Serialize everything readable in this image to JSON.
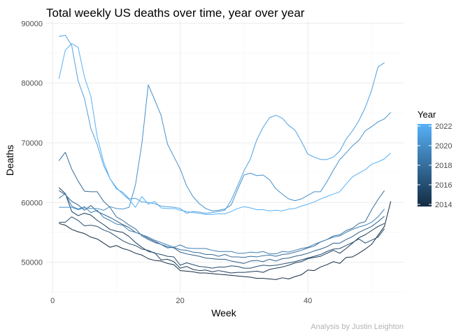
{
  "chart_data": {
    "type": "line",
    "title": "Total weekly US deaths over time, year over year",
    "xlabel": "Week",
    "ylabel": "Deaths",
    "xlim": [
      -1,
      55
    ],
    "ylim": [
      44800,
      90500
    ],
    "x_ticks": [
      0,
      20,
      40
    ],
    "x_tick_labels": [
      "0",
      "20",
      "40"
    ],
    "y_ticks": [
      50000,
      60000,
      70000,
      80000,
      90000
    ],
    "y_tick_labels": [
      "50000",
      "60000",
      "70000",
      "80000",
      "90000"
    ],
    "grid": true,
    "legend": {
      "title": "Year",
      "position": "right",
      "type": "colorbar",
      "range": [
        2014,
        2022
      ],
      "labels": [
        "2022",
        "2020",
        "2018",
        "2016",
        "2014"
      ],
      "low_color": "#132b43",
      "high_color": "#56b1f7"
    },
    "caption": "Analysis by Justin Leighton",
    "series": [
      {
        "year": 2014,
        "x": [
          1,
          2,
          3,
          4,
          5,
          6,
          7,
          8,
          9,
          10,
          11,
          12,
          13,
          14,
          15,
          16,
          17,
          18,
          19,
          20,
          21,
          22,
          23,
          24,
          25,
          26,
          27,
          28,
          29,
          30,
          31,
          32,
          33,
          34,
          35,
          36,
          37,
          38,
          39,
          40,
          41,
          42,
          43,
          44,
          45,
          46,
          47,
          48,
          49,
          50,
          51,
          52,
          53
        ],
        "values": [
          56500,
          56200,
          55500,
          55100,
          54800,
          54200,
          53900,
          53200,
          52500,
          52800,
          52300,
          52000,
          51500,
          51200,
          50600,
          50300,
          50200,
          49800,
          49600,
          48600,
          48500,
          48400,
          48200,
          48200,
          48100,
          48000,
          47900,
          47800,
          47700,
          47600,
          47500,
          47300,
          47300,
          47200,
          47100,
          47400,
          47200,
          47600,
          47900,
          48700,
          48600,
          49200,
          49600,
          50100,
          49800,
          50800,
          50900,
          51500,
          52200,
          53000,
          54500,
          56000,
          60200
        ]
      },
      {
        "year": 2015,
        "x": [
          1,
          2,
          3,
          4,
          5,
          6,
          7,
          8,
          9,
          10,
          11,
          12,
          13,
          14,
          15,
          16,
          17,
          18,
          19,
          20,
          21,
          22,
          23,
          24,
          25,
          26,
          27,
          28,
          29,
          30,
          31,
          32,
          33,
          34,
          35,
          36,
          37,
          38,
          39,
          40,
          41,
          42,
          43,
          44,
          45,
          46,
          47,
          48,
          49,
          50,
          51,
          52
        ],
        "values": [
          62500,
          61500,
          58500,
          57800,
          58200,
          57900,
          57000,
          56300,
          55500,
          55200,
          55000,
          54300,
          53300,
          52500,
          51800,
          51600,
          50400,
          50500,
          50100,
          49000,
          49300,
          48800,
          48600,
          48700,
          48400,
          48600,
          48400,
          48200,
          48300,
          48300,
          48400,
          48500,
          48300,
          48800,
          49000,
          49200,
          49500,
          49900,
          50100,
          50600,
          50800,
          51000,
          51500,
          52000,
          51500,
          52300,
          53200,
          54100,
          54600,
          55300,
          56000,
          56500
        ]
      },
      {
        "year": 2016,
        "x": [
          1,
          2,
          3,
          4,
          5,
          6,
          7,
          8,
          9,
          10,
          11,
          12,
          13,
          14,
          15,
          16,
          17,
          18,
          19,
          20,
          21,
          22,
          23,
          24,
          25,
          26,
          27,
          28,
          29,
          30,
          31,
          32,
          33,
          34,
          35,
          36,
          37,
          38,
          39,
          40,
          41,
          42,
          43,
          44,
          45,
          46,
          47,
          48,
          49,
          50,
          51,
          52
        ],
        "values": [
          56700,
          56700,
          57600,
          57000,
          56100,
          56200,
          56000,
          55400,
          55000,
          54300,
          53600,
          53100,
          52800,
          52200,
          52000,
          51500,
          51300,
          51000,
          50900,
          49500,
          49900,
          49600,
          49300,
          49200,
          49000,
          49200,
          49200,
          49400,
          49300,
          49000,
          49000,
          49300,
          49500,
          49400,
          49500,
          49700,
          49900,
          50100,
          50400,
          50700,
          51000,
          51300,
          51800,
          52200,
          52300,
          52800,
          53300,
          53900,
          53200,
          53700,
          54200,
          55600
        ]
      },
      {
        "year": 2017,
        "x": [
          1,
          2,
          3,
          4,
          5,
          6,
          7,
          8,
          9,
          10,
          11,
          12,
          13,
          14,
          15,
          16,
          17,
          18,
          19,
          20,
          21,
          22,
          23,
          24,
          25,
          26,
          27,
          28,
          29,
          30,
          31,
          32,
          33,
          34,
          35,
          36,
          37,
          38,
          39,
          40,
          41,
          42,
          43,
          44,
          45,
          46,
          47,
          48,
          49,
          50,
          51,
          52
        ],
        "values": [
          62000,
          61300,
          60200,
          59600,
          58700,
          59500,
          58500,
          58000,
          57500,
          56900,
          56300,
          55800,
          55000,
          54600,
          54000,
          53500,
          53000,
          52600,
          52400,
          51700,
          51400,
          51200,
          51000,
          50700,
          50600,
          50500,
          50500,
          50200,
          50000,
          49800,
          50200,
          50300,
          50100,
          50500,
          50200,
          50600,
          50700,
          51000,
          51200,
          51500,
          51900,
          52200,
          52600,
          53200,
          53200,
          53800,
          54300,
          55000,
          55500,
          56000,
          56800,
          57700
        ]
      },
      {
        "year": 2018,
        "x": [
          1,
          2,
          3,
          4,
          5,
          6,
          7,
          8,
          9,
          10,
          11,
          12,
          13,
          14,
          15,
          16,
          17,
          18,
          19,
          20,
          21,
          22,
          23,
          24,
          25,
          26,
          27,
          28,
          29,
          30,
          31,
          32,
          33,
          34,
          35,
          36,
          37,
          38,
          39,
          40,
          41,
          42,
          43,
          44,
          45,
          46,
          47,
          48,
          49,
          50,
          51,
          52
        ],
        "values": [
          67000,
          68400,
          65600,
          63600,
          61900,
          61800,
          61800,
          60200,
          59200,
          57600,
          57000,
          56200,
          55600,
          54400,
          53800,
          53300,
          53000,
          52400,
          52500,
          52100,
          52000,
          51700,
          51600,
          51300,
          51300,
          51000,
          51300,
          50900,
          50900,
          50800,
          51000,
          50900,
          51100,
          51200,
          51000,
          51300,
          51400,
          51700,
          52000,
          52400,
          52700,
          53400,
          53800,
          54400,
          54600,
          55300,
          55700,
          56500,
          56800,
          58800,
          60500,
          62000
        ]
      },
      {
        "year": 2019,
        "x": [
          1,
          2,
          3,
          4,
          5,
          6,
          7,
          8,
          9,
          10,
          11,
          12,
          13,
          14,
          15,
          16,
          17,
          18,
          19,
          20,
          21,
          22,
          23,
          24,
          25,
          26,
          27,
          28,
          29,
          30,
          31,
          32,
          33,
          34,
          35,
          36,
          37,
          38,
          39,
          40,
          41,
          42,
          43,
          44,
          45,
          46,
          47,
          48,
          49,
          50,
          51,
          52
        ],
        "values": [
          60700,
          61500,
          59400,
          58900,
          59300,
          58300,
          58700,
          57500,
          57000,
          56400,
          56200,
          55300,
          55000,
          54600,
          54200,
          53700,
          53300,
          52900,
          52500,
          52900,
          52400,
          52300,
          52300,
          52300,
          52000,
          51800,
          51800,
          51800,
          51500,
          51500,
          51700,
          51600,
          51800,
          51400,
          51400,
          51800,
          51700,
          52000,
          52300,
          52500,
          53000,
          53400,
          53800,
          54200,
          54400,
          55000,
          55500,
          55900,
          56200,
          56700,
          57600,
          58900
        ]
      },
      {
        "year": 2020,
        "x": [
          1,
          2,
          3,
          4,
          5,
          6,
          7,
          8,
          9,
          10,
          11,
          12,
          13,
          14,
          15,
          16,
          17,
          18,
          19,
          20,
          21,
          22,
          23,
          24,
          25,
          26,
          27,
          28,
          29,
          30,
          31,
          32,
          33,
          34,
          35,
          36,
          37,
          38,
          39,
          40,
          41,
          42,
          43,
          44,
          45,
          46,
          47,
          48,
          49,
          50,
          51,
          52,
          53
        ],
        "values": [
          59200,
          59200,
          59200,
          58800,
          59100,
          59000,
          59000,
          58700,
          59300,
          59000,
          58900,
          59200,
          63000,
          69900,
          79700,
          77200,
          74600,
          69800,
          67700,
          65600,
          62800,
          61000,
          59800,
          59000,
          58600,
          58700,
          58900,
          59600,
          62200,
          64600,
          64900,
          64500,
          64600,
          63800,
          62300,
          61400,
          60600,
          60300,
          60600,
          61200,
          61800,
          61800,
          63500,
          65400,
          67200,
          68300,
          69500,
          70400,
          72000,
          72700,
          73500,
          74000,
          75100
        ]
      },
      {
        "year": 2021,
        "x": [
          1,
          2,
          3,
          4,
          5,
          6,
          7,
          8,
          9,
          10,
          11,
          12,
          13,
          14,
          15,
          16,
          17,
          18,
          19,
          20,
          21,
          22,
          23,
          24,
          25,
          26,
          27,
          28,
          29,
          30,
          31,
          32,
          33,
          34,
          35,
          36,
          37,
          38,
          39,
          40,
          41,
          42,
          43,
          44,
          45,
          46,
          47,
          48,
          49,
          50,
          51,
          52
        ],
        "values": [
          87800,
          88000,
          86300,
          80400,
          77400,
          72400,
          69700,
          66200,
          64000,
          62300,
          61700,
          60600,
          60700,
          60100,
          60000,
          59800,
          59400,
          59300,
          59200,
          59000,
          58200,
          58500,
          58400,
          58200,
          58300,
          58500,
          58700,
          60400,
          62800,
          65300,
          67300,
          70500,
          72600,
          74200,
          74600,
          74100,
          72900,
          72100,
          70200,
          68100,
          67600,
          67200,
          67200,
          67600,
          68600,
          70600,
          72000,
          73700,
          75900,
          78800,
          82700,
          83400
        ]
      },
      {
        "year": 2022,
        "x": [
          1,
          2,
          3,
          4,
          5,
          6,
          7,
          8,
          9,
          10,
          11,
          12,
          13,
          14,
          15,
          16,
          17,
          18,
          19,
          20,
          21,
          22,
          23,
          24,
          25,
          26,
          27,
          28,
          29,
          30,
          31,
          32,
          33,
          34,
          35,
          36,
          37,
          38,
          39,
          40,
          41,
          42,
          43,
          44,
          45,
          46,
          47,
          48,
          49,
          50,
          51,
          52,
          53
        ],
        "values": [
          80700,
          85500,
          86600,
          86000,
          81000,
          77800,
          71000,
          66800,
          64000,
          62500,
          61400,
          60500,
          59200,
          61000,
          59700,
          60200,
          59100,
          59000,
          59000,
          58700,
          58500,
          58300,
          58200,
          58000,
          58000,
          58100,
          58100,
          58500,
          59000,
          59300,
          59100,
          58800,
          58800,
          58600,
          58700,
          58600,
          58900,
          59000,
          59400,
          59700,
          60100,
          60600,
          61000,
          61400,
          61800,
          63100,
          64300,
          64900,
          65500,
          66400,
          66800,
          67300,
          68300
        ]
      }
    ]
  }
}
